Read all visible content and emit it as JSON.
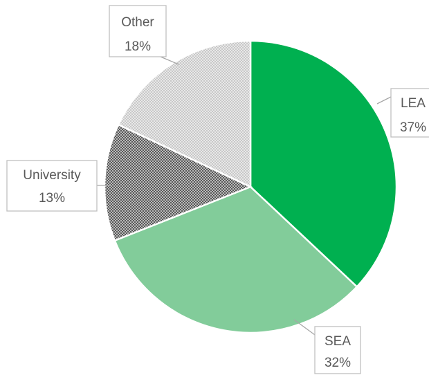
{
  "chart_data": {
    "type": "pie",
    "categories": [
      "LEA",
      "SEA",
      "University",
      "Other"
    ],
    "values": [
      37,
      32,
      13,
      18
    ],
    "value_labels": [
      "37%",
      "32%",
      "13%",
      "18%"
    ],
    "colors": [
      "#00b050",
      "#82cc9a",
      "#595959",
      "#c8c8c8"
    ],
    "patterns": [
      "solid",
      "solid",
      "dots",
      "dots"
    ]
  }
}
